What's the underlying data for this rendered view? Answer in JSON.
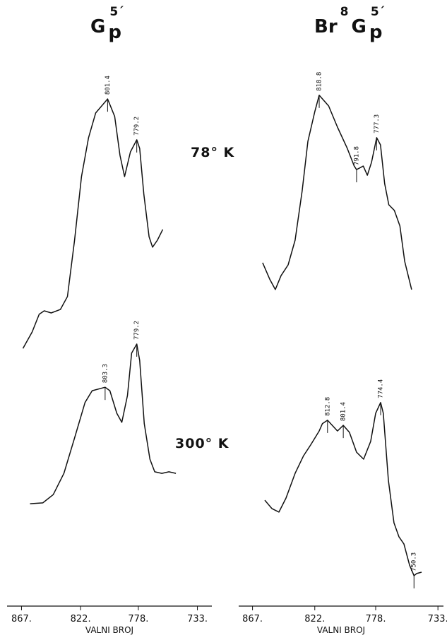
{
  "chart_data": [
    {
      "type": "line",
      "title": [
        {
          "text": "G",
          "script": "base"
        },
        {
          "text": "p",
          "script": "sub"
        },
        {
          "text": "5´",
          "script": "sup"
        }
      ],
      "xlabel": "VALNI BROJ",
      "xlim": [
        878,
        722
      ],
      "xticks": [
        {
          "value": 867,
          "label": "867."
        },
        {
          "value": 822,
          "label": "822."
        },
        {
          "value": 778,
          "label": "778."
        },
        {
          "value": 733,
          "label": "733."
        }
      ],
      "ylim": [
        0,
        100
      ],
      "color": "#111111",
      "series": [
        {
          "name": "78° K",
          "x": [
            865.9,
            858.9,
            853.5,
            849.7,
            844.4,
            837.4,
            832.0,
            826.6,
            821.3,
            815.9,
            810.5,
            801.4,
            796.0,
            792.0,
            788.5,
            784.0,
            779.2,
            777.0,
            773.8,
            769.8,
            767.2,
            763.5,
            759.4
          ],
          "values": [
            1.8,
            7.9,
            14.5,
            15.8,
            15.0,
            16.3,
            21.1,
            42.1,
            65.8,
            80.3,
            89.5,
            94.7,
            88.2,
            73.7,
            65.8,
            75.0,
            79.5,
            76.3,
            59.2,
            43.4,
            39.5,
            42.1,
            46.1
          ],
          "peaks": [
            801.4,
            779.2
          ]
        },
        {
          "name": "300° K",
          "x": [
            860.5,
            850.8,
            842.8,
            834.7,
            826.6,
            818.6,
            813.2,
            803.3,
            799.7,
            794.4,
            790.6,
            786.3,
            783.1,
            779.2,
            777.0,
            773.5,
            769.2,
            765.5,
            760.1,
            754.7,
            749.4
          ],
          "values": [
            33.4,
            33.7,
            36.8,
            44.7,
            57.9,
            71.1,
            75.5,
            76.8,
            75.5,
            67.1,
            63.7,
            73.7,
            89.5,
            92.9,
            86.8,
            63.2,
            50.0,
            45.3,
            44.7,
            45.3,
            44.7
          ],
          "peaks": [
            803.3,
            779.2
          ]
        }
      ]
    },
    {
      "type": "line",
      "title": [
        {
          "text": "Br",
          "script": "base"
        },
        {
          "text": "8",
          "script": "sup"
        },
        {
          "text": "G",
          "script": "base"
        },
        {
          "text": "p",
          "script": "sub"
        },
        {
          "text": "5´",
          "script": "sup"
        }
      ],
      "xlabel": "VALNI BROJ",
      "xlim": [
        877,
        729
      ],
      "xticks": [
        {
          "value": 867,
          "label": "867."
        },
        {
          "value": 822,
          "label": "822."
        },
        {
          "value": 778,
          "label": "778."
        },
        {
          "value": 733,
          "label": "733."
        }
      ],
      "ylim": [
        0,
        100
      ],
      "color": "#111111",
      "series": [
        {
          "x": [
            859.7,
            854.6,
            850.5,
            846.4,
            841.3,
            836.2,
            831.1,
            827.0,
            822.0,
            818.8,
            812.0,
            805.6,
            798.5,
            793.5,
            791.8,
            787.0,
            784.0,
            781.0,
            777.3,
            774.5,
            771.5,
            768.5,
            764.5,
            760.5,
            757.0,
            752.0
          ],
          "values": [
            33.7,
            27.6,
            23.7,
            28.9,
            32.9,
            42.1,
            60.5,
            78.9,
            90.0,
            96.1,
            92.1,
            84.2,
            76.3,
            69.7,
            68.4,
            69.7,
            66.3,
            71.1,
            80.3,
            77.6,
            63.2,
            55.3,
            53.2,
            47.4,
            34.2,
            23.7
          ],
          "peaks": [
            818.8,
            791.8,
            777.3
          ]
        },
        {
          "x": [
            858.1,
            853.0,
            847.9,
            842.8,
            836.2,
            830.1,
            825.0,
            818.8,
            816.5,
            812.8,
            805.6,
            801.4,
            797.0,
            791.8,
            786.7,
            781.6,
            778.0,
            774.4,
            772.5,
            768.8,
            764.8,
            761.2,
            757.6,
            753.5,
            750.3,
            748.4,
            744.8
          ],
          "values": [
            34.7,
            31.6,
            30.3,
            35.5,
            44.7,
            51.3,
            55.3,
            60.5,
            63.2,
            64.5,
            60.5,
            62.6,
            60.0,
            52.6,
            50.0,
            56.6,
            67.1,
            71.1,
            67.1,
            42.1,
            26.3,
            21.1,
            18.4,
            10.5,
            6.6,
            7.4,
            7.9
          ],
          "peaks": [
            812.8,
            801.4,
            774.4,
            750.3
          ]
        }
      ]
    }
  ]
}
